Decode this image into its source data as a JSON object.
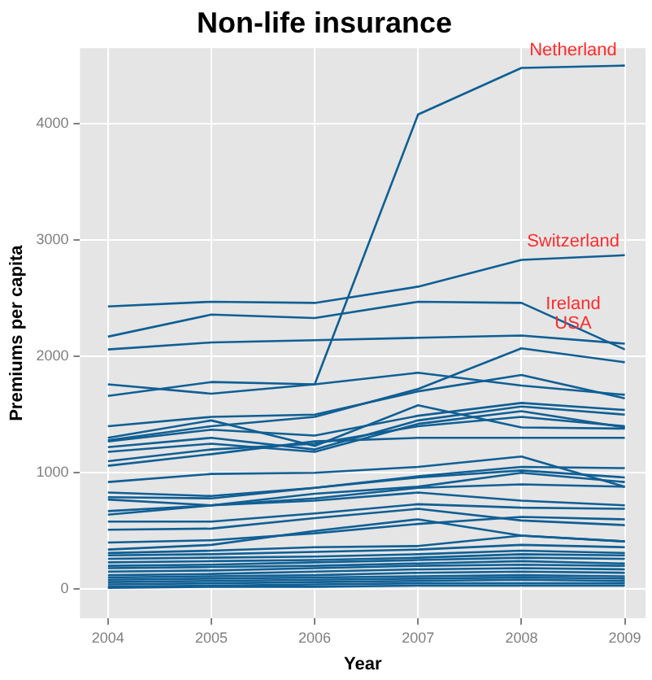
{
  "chart_data": {
    "type": "line",
    "title": "Non-life insurance",
    "xlabel": "Year",
    "ylabel": "Premiums per capita",
    "x": [
      2004,
      2005,
      2006,
      2007,
      2008,
      2009
    ],
    "xlim": [
      2003.73,
      2009.2
    ],
    "xticks": [
      2004,
      2005,
      2006,
      2007,
      2008,
      2009
    ],
    "ylim": [
      -250,
      4650
    ],
    "yticks": [
      0,
      1000,
      2000,
      3000,
      4000
    ],
    "grid": true,
    "legend": false,
    "marker": "none",
    "line_style": "solid",
    "series": [
      {
        "name": "Netherland",
        "color": "#0f5f94",
        "values": [
          1660,
          1780,
          1760,
          4080,
          4480,
          4500
        ]
      },
      {
        "name": "Switzerland",
        "color": "#0f5f94",
        "values": [
          2430,
          2470,
          2460,
          2600,
          2830,
          2870
        ]
      },
      {
        "name": "Ireland",
        "color": "#0f5f94",
        "values": [
          2170,
          2360,
          2330,
          2470,
          2460,
          2060
        ]
      },
      {
        "name": "USA",
        "color": "#0f5f94",
        "values": [
          2060,
          2120,
          2140,
          2160,
          2180,
          2110
        ]
      },
      {
        "color": "#0f5f94",
        "values": [
          1760,
          1680,
          1760,
          1860,
          1750,
          1670
        ]
      },
      {
        "color": "#0f5f94",
        "values": [
          1280,
          1400,
          1480,
          1720,
          2070,
          1950
        ]
      },
      {
        "color": "#0f5f94",
        "values": [
          1400,
          1480,
          1500,
          1700,
          1840,
          1640
        ]
      },
      {
        "color": "#0f5f94",
        "values": [
          1300,
          1450,
          1230,
          1580,
          1390,
          1380
        ]
      },
      {
        "color": "#0f5f94",
        "values": [
          1270,
          1370,
          1320,
          1490,
          1600,
          1540
        ]
      },
      {
        "color": "#0f5f94",
        "values": [
          1220,
          1300,
          1200,
          1450,
          1570,
          1500
        ]
      },
      {
        "color": "#0f5f94",
        "values": [
          1180,
          1250,
          1180,
          1420,
          1530,
          1390
        ]
      },
      {
        "color": "#0f5f94",
        "values": [
          1100,
          1200,
          1250,
          1400,
          1480,
          1400
        ]
      },
      {
        "color": "#0f5f94",
        "values": [
          1060,
          1160,
          1270,
          1300,
          1300,
          1300
        ]
      },
      {
        "color": "#0f5f94",
        "values": [
          920,
          990,
          1000,
          1050,
          1140,
          880
        ]
      },
      {
        "color": "#0f5f94",
        "values": [
          830,
          800,
          870,
          970,
          1050,
          1040
        ]
      },
      {
        "color": "#0f5f94",
        "values": [
          790,
          780,
          870,
          960,
          1020,
          960
        ]
      },
      {
        "color": "#0f5f94",
        "values": [
          770,
          720,
          820,
          880,
          1000,
          920
        ]
      },
      {
        "color": "#0f5f94",
        "values": [
          670,
          720,
          780,
          870,
          900,
          880
        ]
      },
      {
        "color": "#0f5f94",
        "values": [
          640,
          720,
          760,
          830,
          760,
          720
        ]
      },
      {
        "color": "#0f5f94",
        "values": [
          580,
          580,
          650,
          730,
          700,
          690
        ]
      },
      {
        "color": "#0f5f94",
        "values": [
          510,
          520,
          610,
          690,
          590,
          550
        ]
      },
      {
        "color": "#0f5f94",
        "values": [
          400,
          420,
          480,
          560,
          620,
          600
        ]
      },
      {
        "color": "#0f5f94",
        "values": [
          340,
          380,
          500,
          600,
          460,
          410
        ]
      },
      {
        "color": "#0f5f94",
        "values": [
          310,
          330,
          360,
          370,
          460,
          410
        ]
      },
      {
        "color": "#0f5f94",
        "values": [
          290,
          300,
          320,
          340,
          380,
          360
        ]
      },
      {
        "color": "#0f5f94",
        "values": [
          260,
          270,
          280,
          300,
          330,
          310
        ]
      },
      {
        "color": "#0f5f94",
        "values": [
          230,
          240,
          250,
          270,
          300,
          290
        ]
      },
      {
        "color": "#0f5f94",
        "values": [
          200,
          210,
          230,
          250,
          270,
          260
        ]
      },
      {
        "color": "#0f5f94",
        "values": [
          180,
          190,
          200,
          220,
          240,
          220
        ]
      },
      {
        "color": "#0f5f94",
        "values": [
          150,
          160,
          180,
          200,
          210,
          200
        ]
      },
      {
        "color": "#0f5f94",
        "values": [
          120,
          130,
          150,
          170,
          180,
          170
        ]
      },
      {
        "color": "#0f5f94",
        "values": [
          100,
          110,
          120,
          140,
          150,
          140
        ]
      },
      {
        "color": "#0f5f94",
        "values": [
          80,
          90,
          100,
          110,
          120,
          110
        ]
      },
      {
        "color": "#0f5f94",
        "values": [
          60,
          70,
          80,
          90,
          100,
          90
        ]
      },
      {
        "color": "#0f5f94",
        "values": [
          40,
          50,
          60,
          70,
          80,
          70
        ]
      },
      {
        "color": "#0f5f94",
        "values": [
          20,
          30,
          40,
          50,
          50,
          50
        ]
      },
      {
        "color": "#0f5f94",
        "values": [
          10,
          20,
          20,
          30,
          30,
          30
        ]
      }
    ]
  }
}
